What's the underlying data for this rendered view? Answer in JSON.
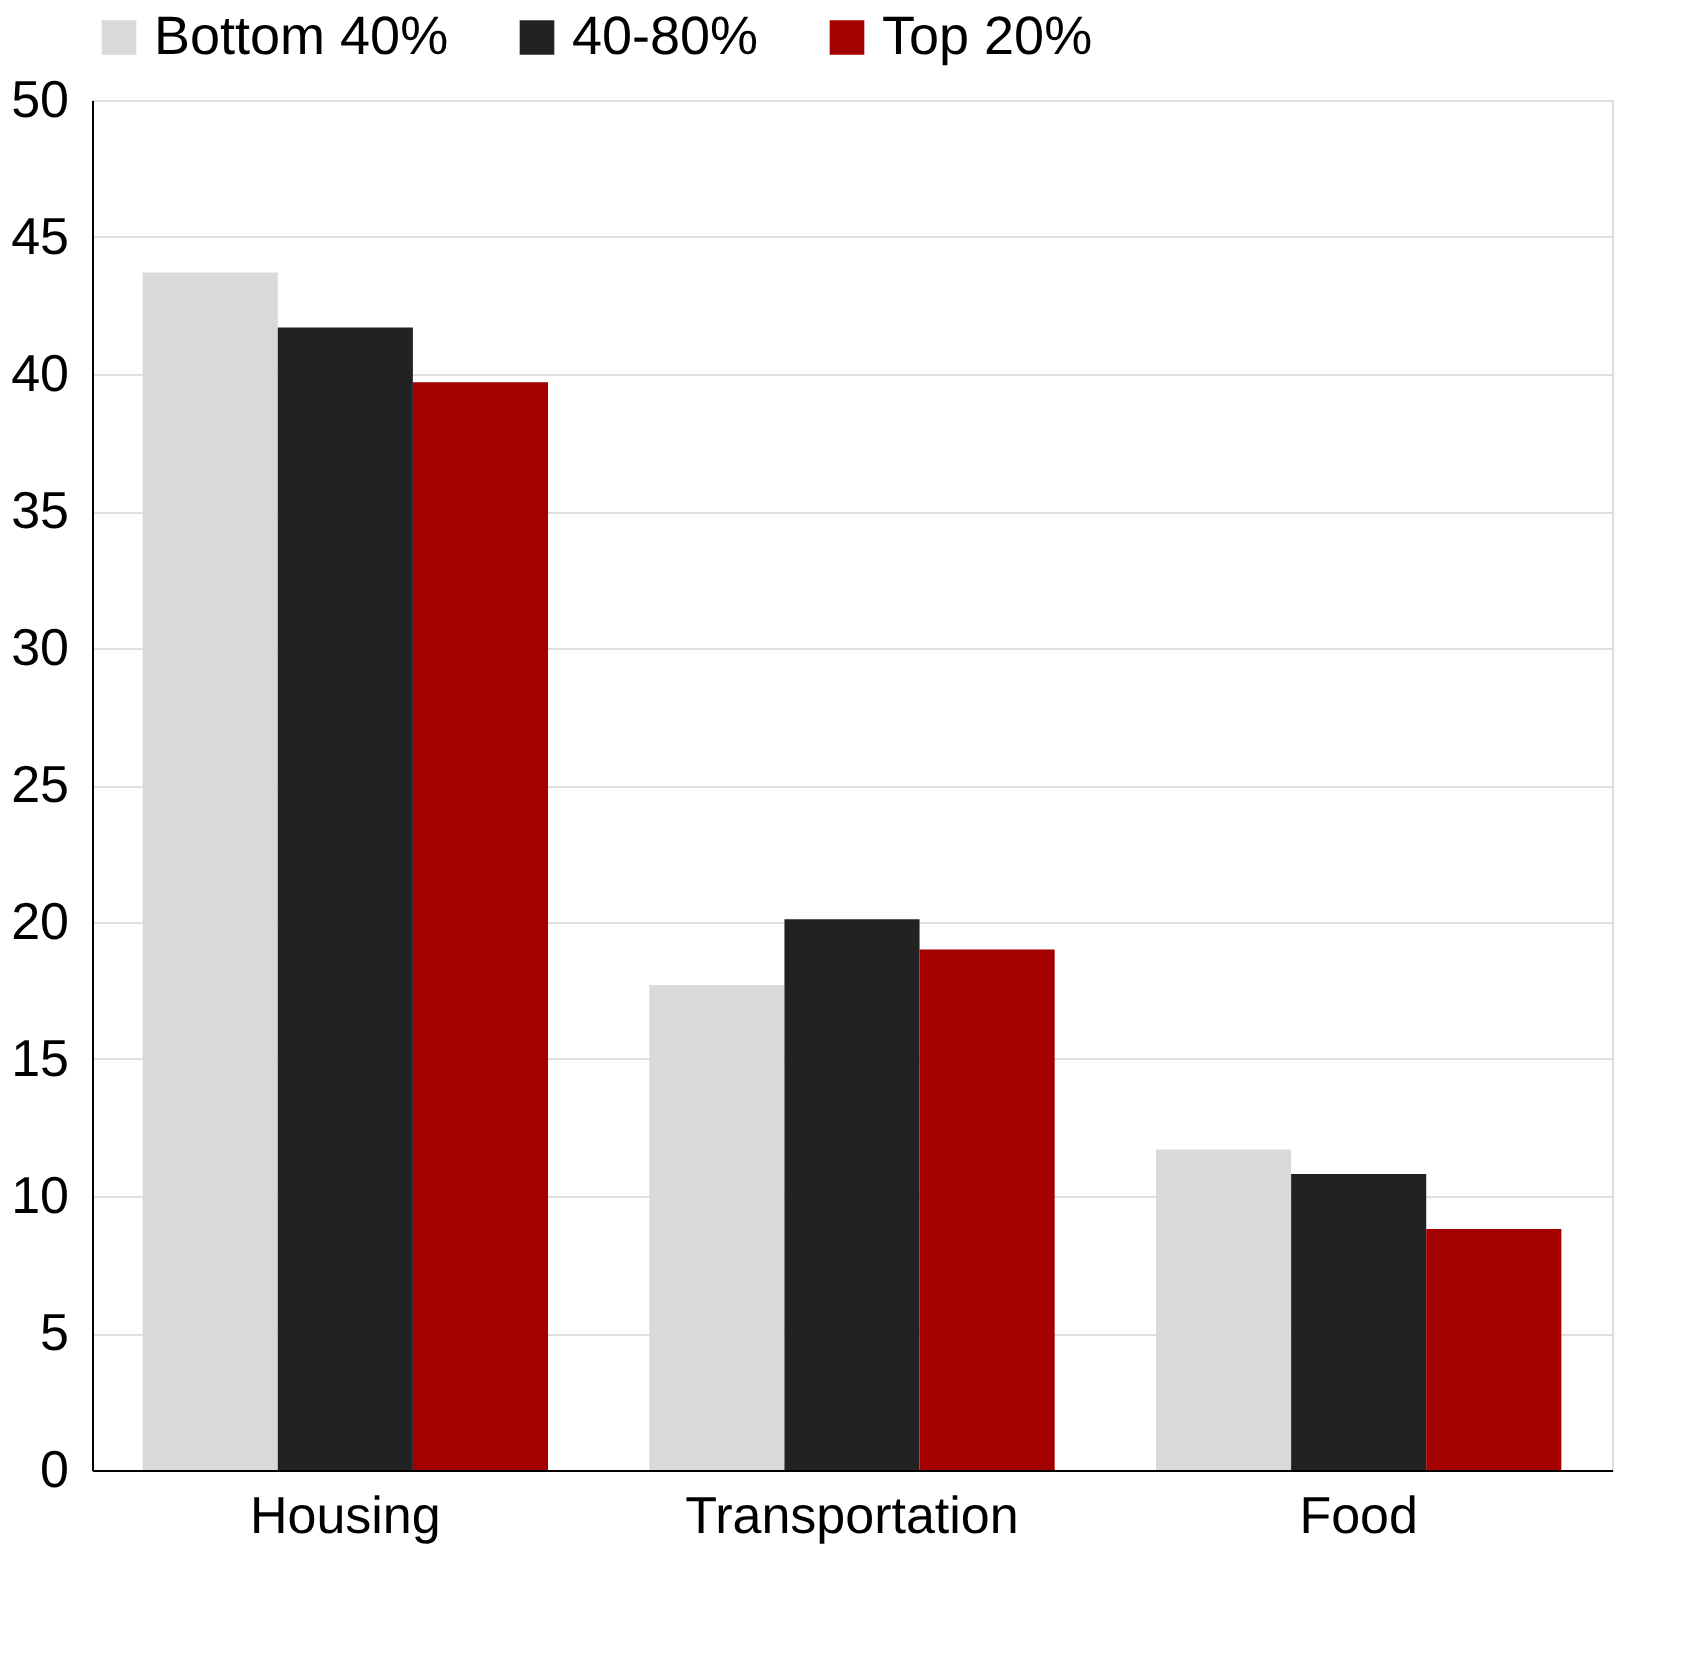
{
  "chart_data": {
    "type": "bar",
    "categories": [
      "Housing",
      "Transportation",
      "Food"
    ],
    "series": [
      {
        "name": "Bottom 40%",
        "color": "#d9d9d9",
        "values": [
          43.7,
          17.7,
          11.7
        ]
      },
      {
        "name": "40-80%",
        "color": "#222222",
        "values": [
          41.7,
          20.1,
          10.8
        ]
      },
      {
        "name": "Top 20%",
        "color": "#a50000",
        "values": [
          39.7,
          19.0,
          8.8
        ]
      }
    ],
    "ylim": [
      0,
      50
    ],
    "yticks": [
      0,
      5,
      10,
      15,
      20,
      25,
      30,
      35,
      40,
      45,
      50
    ],
    "grid": "y",
    "legend": "top"
  }
}
